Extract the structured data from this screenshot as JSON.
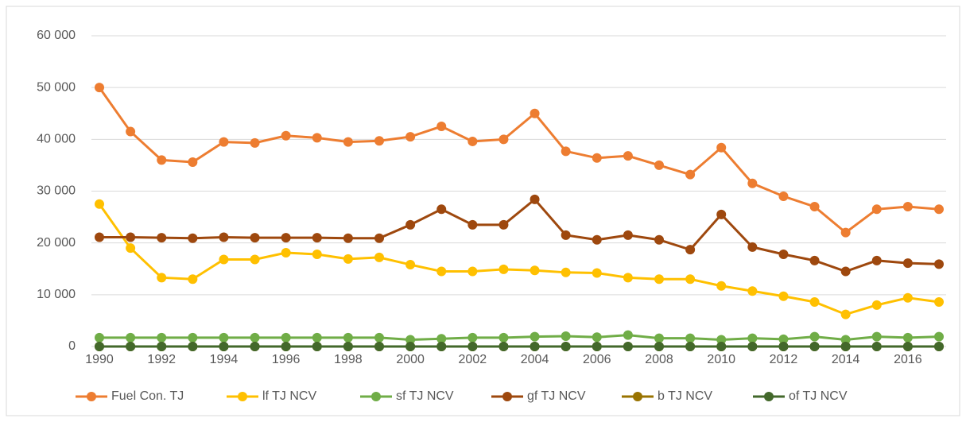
{
  "chart_data": {
    "type": "line",
    "x": [
      1990,
      1991,
      1992,
      1993,
      1994,
      1995,
      1996,
      1997,
      1998,
      1999,
      2000,
      2001,
      2002,
      2003,
      2004,
      2005,
      2006,
      2007,
      2008,
      2009,
      2010,
      2011,
      2012,
      2013,
      2014,
      2015,
      2016,
      2017
    ],
    "xlim": [
      1990,
      2017
    ],
    "xticks": [
      1990,
      1992,
      1994,
      1996,
      1998,
      2000,
      2002,
      2004,
      2006,
      2008,
      2010,
      2012,
      2014,
      2016
    ],
    "ylim": [
      0,
      60000
    ],
    "yticks": [
      0,
      {
        "value": 10000,
        "label": "10 000"
      },
      {
        "value": 20000,
        "label": "20 000"
      },
      {
        "value": 30000,
        "label": "30 000"
      },
      {
        "value": 40000,
        "label": "40 000"
      },
      {
        "value": 50000,
        "label": "50 000"
      },
      {
        "value": 60000,
        "label": "60 000"
      }
    ],
    "grid": true,
    "legend": "bottom",
    "series": [
      {
        "name": "Fuel Con. TJ",
        "color": "#ed7d31",
        "values": [
          50000,
          41500,
          36000,
          35600,
          39500,
          39300,
          40700,
          40300,
          39500,
          39700,
          40500,
          42500,
          39600,
          40000,
          45000,
          37700,
          36400,
          36800,
          35000,
          33200,
          38400,
          31500,
          29000,
          27000,
          22000,
          26500,
          27000,
          26500
        ]
      },
      {
        "name": "lf TJ NCV",
        "color": "#ffc000",
        "values": [
          27500,
          19000,
          13300,
          13000,
          16800,
          16800,
          18100,
          17800,
          16900,
          17200,
          15800,
          14500,
          14500,
          14900,
          14700,
          14300,
          14200,
          13300,
          13000,
          13000,
          11700,
          10700,
          9700,
          8600,
          6200,
          8000,
          9400,
          8600
        ]
      },
      {
        "name": "sf TJ NCV",
        "color": "#70ad47",
        "values": [
          1700,
          1700,
          1700,
          1700,
          1700,
          1700,
          1700,
          1700,
          1700,
          1700,
          1300,
          1500,
          1700,
          1700,
          1900,
          2000,
          1800,
          2200,
          1600,
          1600,
          1300,
          1600,
          1400,
          1900,
          1300,
          1900,
          1700,
          1900
        ]
      },
      {
        "name": "gf TJ NCV",
        "color": "#9e480e",
        "values": [
          21100,
          21100,
          21000,
          20900,
          21100,
          21000,
          21000,
          21000,
          20900,
          20900,
          23500,
          26500,
          23500,
          23500,
          28400,
          21500,
          20600,
          21500,
          20600,
          18700,
          25500,
          19200,
          17800,
          16600,
          14500,
          16600,
          16100,
          15900
        ]
      },
      {
        "name": "b TJ NCV",
        "color": "#997300",
        "values": [
          0,
          0,
          0,
          0,
          0,
          0,
          0,
          0,
          0,
          0,
          0,
          0,
          0,
          0,
          0,
          0,
          0,
          0,
          0,
          0,
          0,
          0,
          0,
          0,
          0,
          0,
          0,
          0
        ]
      },
      {
        "name": "of TJ NCV",
        "color": "#43682b",
        "values": [
          0,
          0,
          0,
          0,
          0,
          0,
          0,
          0,
          0,
          0,
          0,
          0,
          0,
          0,
          0,
          0,
          0,
          0,
          0,
          0,
          0,
          0,
          0,
          0,
          0,
          0,
          0,
          0
        ]
      }
    ]
  }
}
